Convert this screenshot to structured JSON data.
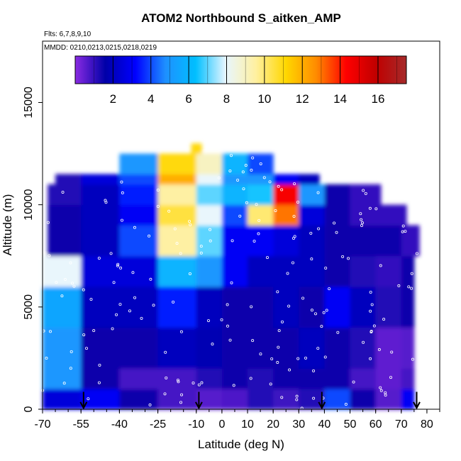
{
  "chart_data": {
    "type": "heatmap",
    "title": "ATOM2 Northbound S_aitken_AMP",
    "notes": [
      "Flts: 6,7,8,9,10",
      "MMDD: 0210,0213,0215,0218,0219"
    ],
    "xlabel": "Latitude (deg N)",
    "ylabel": "Altitude (m)",
    "xlim": [
      -70,
      85
    ],
    "ylim": [
      0,
      18000
    ],
    "x_ticks": [
      -70,
      -55,
      -40,
      -25,
      -10,
      0,
      10,
      20,
      30,
      40,
      50,
      60,
      70,
      80
    ],
    "x_tick_labels": [
      "-70",
      "-55",
      "-40",
      "-25",
      "-10",
      "0",
      "10",
      "20",
      "30",
      "40",
      "50",
      "60",
      "70",
      "80"
    ],
    "y_ticks": [
      0,
      5000,
      10000,
      15000
    ],
    "y_tick_labels": [
      "0",
      "5000",
      "10000",
      "15000"
    ],
    "colorbar": {
      "range": [
        0,
        17.5
      ],
      "ticks": [
        2,
        4,
        6,
        8,
        10,
        12,
        14,
        16
      ],
      "tick_labels": [
        "2",
        "4",
        "6",
        "8",
        "10",
        "12",
        "14",
        "16"
      ],
      "colors": [
        "#8a2be2",
        "#0000a8",
        "#0000ff",
        "#1e90ff",
        "#00bfff",
        "#e8f6ff",
        "#fff0a0",
        "#ffd700",
        "#ff8c00",
        "#ff0000",
        "#c00000",
        "#a52a2a"
      ]
    },
    "altitude_bands": [
      {
        "alt": [
          0,
          1000
        ],
        "lat": [
          -70,
          75
        ],
        "lat_bins": [
          -70,
          -55,
          -40,
          -25,
          -10,
          0,
          10,
          20,
          30,
          40,
          50,
          60,
          70,
          75
        ],
        "values": [
          2.5,
          3,
          1.5,
          0.8,
          0.6,
          0.7,
          1.2,
          0.9,
          1.2,
          4,
          1.5,
          0.6,
          3
        ]
      },
      {
        "alt": [
          1000,
          2000
        ],
        "lat": [
          -70,
          75
        ],
        "lat_bins": [
          -70,
          -55,
          -40,
          -25,
          -10,
          0,
          10,
          20,
          30,
          40,
          50,
          60,
          70,
          75
        ],
        "values": [
          5,
          1.5,
          0.8,
          0.8,
          1.2,
          1.5,
          1.2,
          1.5,
          1.5,
          1.5,
          0.8,
          0.5,
          0.8
        ]
      },
      {
        "alt": [
          2000,
          4000
        ],
        "lat": [
          -70,
          75
        ],
        "lat_bins": [
          -70,
          -55,
          -40,
          -25,
          -10,
          0,
          10,
          20,
          30,
          40,
          50,
          60,
          70,
          75
        ],
        "values": [
          5,
          1.5,
          1.5,
          2,
          1.8,
          1.5,
          1.5,
          1.5,
          2,
          1.5,
          1.2,
          0.5,
          0.6
        ]
      },
      {
        "alt": [
          4000,
          6000
        ],
        "lat": [
          -70,
          75
        ],
        "lat_bins": [
          -70,
          -55,
          -40,
          -25,
          -10,
          0,
          10,
          20,
          30,
          40,
          50,
          60,
          70,
          75
        ],
        "values": [
          5.5,
          2,
          2,
          3.5,
          2,
          1.5,
          1.5,
          2,
          1.5,
          3,
          2,
          1.2,
          1.5
        ]
      },
      {
        "alt": [
          6000,
          7500
        ],
        "lat": [
          -70,
          75
        ],
        "lat_bins": [
          -70,
          -55,
          -40,
          -25,
          -10,
          0,
          10,
          20,
          30,
          40,
          50,
          60,
          70,
          75
        ],
        "values": [
          8,
          2.5,
          2.5,
          6,
          5,
          3,
          2,
          2,
          2,
          1.5,
          1.2,
          1,
          1.5
        ]
      },
      {
        "alt": [
          7500,
          9000
        ],
        "lat": [
          -68,
          77
        ],
        "lat_bins": [
          -68,
          -55,
          -40,
          -25,
          -10,
          0,
          10,
          20,
          30,
          40,
          50,
          60,
          70,
          77
        ],
        "values": [
          1.5,
          2,
          4,
          9.5,
          7,
          3,
          3,
          2.5,
          2,
          1.5,
          1.5,
          1.5,
          1
        ]
      },
      {
        "alt": [
          9000,
          10000
        ],
        "lat": [
          -68,
          72
        ],
        "lat_bins": [
          -68,
          -55,
          -40,
          -25,
          -10,
          0,
          10,
          20,
          30,
          40,
          50,
          60,
          72
        ],
        "values": [
          1.5,
          2,
          3,
          10.5,
          8,
          4,
          10,
          13,
          2.5,
          1.5,
          1,
          1
        ]
      },
      {
        "alt": [
          10000,
          11000
        ],
        "lat": [
          -68,
          62
        ],
        "lat_bins": [
          -68,
          -55,
          -40,
          -25,
          -10,
          0,
          10,
          20,
          30,
          40,
          50,
          62
        ],
        "values": [
          1.2,
          2,
          3.5,
          9.5,
          7,
          6,
          6.5,
          14.5,
          5,
          1.5,
          1
        ]
      },
      {
        "alt": [
          11000,
          11500
        ],
        "lat": [
          -65,
          38
        ],
        "lat_bins": [
          -65,
          -55,
          -40,
          -25,
          -10,
          0,
          10,
          20,
          30,
          38
        ],
        "values": [
          1.2,
          2.5,
          4,
          12,
          8,
          5,
          5,
          3,
          2
        ]
      },
      {
        "alt": [
          11500,
          12500
        ],
        "lat": [
          -40,
          20
        ],
        "lat_bins": [
          -40,
          -25,
          -10,
          0,
          10,
          20
        ],
        "values": [
          5,
          11,
          9,
          6,
          4
        ]
      },
      {
        "alt": [
          12500,
          13000
        ],
        "lat": [
          -12,
          -8
        ],
        "lat_bins": [
          -12,
          -8
        ],
        "values": [
          11
        ]
      }
    ],
    "flight_markers": [
      -54,
      -9,
      39,
      76
    ]
  }
}
